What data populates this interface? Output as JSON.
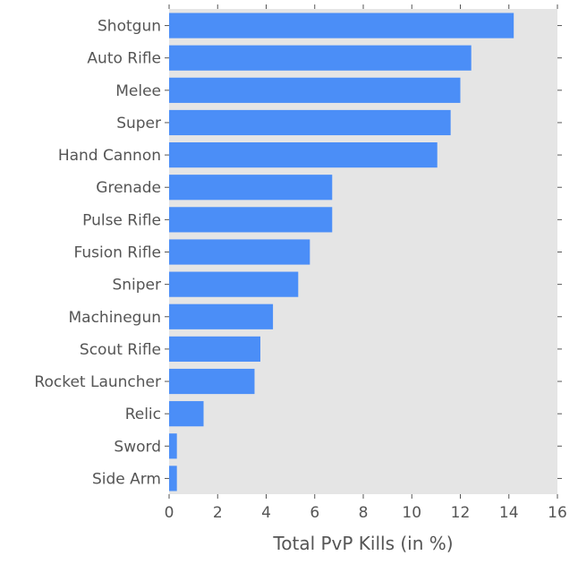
{
  "chart_data": {
    "type": "bar",
    "orientation": "horizontal",
    "title": "",
    "xlabel": "Total PvP Kills (in %)",
    "ylabel": "",
    "xlim": [
      0,
      16
    ],
    "xticks": [
      "0",
      "2",
      "4",
      "6",
      "8",
      "10",
      "12",
      "14",
      "16"
    ],
    "categories": [
      "Shotgun",
      "Auto Rifle",
      "Melee",
      "Super",
      "Hand Cannon",
      "Grenade",
      "Pulse Rifle",
      "Fusion Rifle",
      "Sniper",
      "Machinegun",
      "Scout Rifle",
      "Rocket Launcher",
      "Relic",
      "Sword",
      "Side Arm"
    ],
    "values": [
      14.2,
      12.45,
      12.0,
      11.6,
      11.05,
      6.72,
      6.72,
      5.8,
      5.32,
      4.28,
      3.76,
      3.52,
      1.42,
      0.32,
      0.32
    ],
    "grid": false,
    "legend": "none",
    "colors": {
      "bar": "#4b8ef7",
      "plot_background": "#e5e5e5",
      "text": "#555555",
      "tick": "#555555"
    }
  }
}
